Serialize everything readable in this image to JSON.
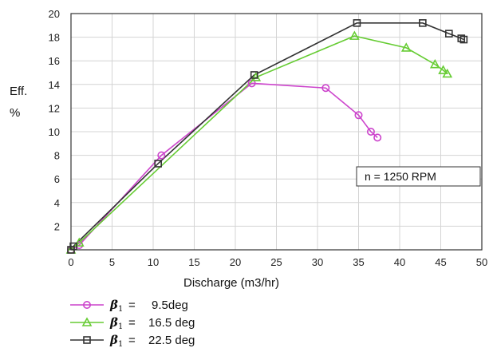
{
  "chart_data": {
    "type": "line",
    "xlabel": "Discharge (m3/hr)",
    "ylabel_line1": "Eff.",
    "ylabel_line2": "%",
    "xlim": [
      0,
      50
    ],
    "ylim": [
      0,
      20
    ],
    "xticks": [
      0,
      5,
      10,
      15,
      20,
      25,
      30,
      35,
      40,
      45,
      50
    ],
    "yticks": [
      2,
      4,
      6,
      8,
      10,
      12,
      14,
      16,
      18,
      20
    ],
    "grid": true,
    "annotation": "n = 1250 RPM",
    "legend_position": "bottom-left",
    "series": [
      {
        "name": "9.5deg",
        "beta_symbol": "β",
        "beta_subscript": "1",
        "equals": "=",
        "color": "#cc44cc",
        "marker": "circle",
        "x": [
          0,
          1,
          11,
          22,
          31,
          35,
          36.5,
          37.3
        ],
        "y": [
          0,
          0.4,
          8.0,
          14.1,
          13.7,
          11.4,
          10.0,
          9.5
        ]
      },
      {
        "name": "16.5 deg",
        "beta_symbol": "β",
        "beta_subscript": "1",
        "equals": "=",
        "color": "#66cc33",
        "marker": "triangle",
        "x": [
          0,
          1,
          22.5,
          34.5,
          40.8,
          44.3,
          45.3,
          45.8
        ],
        "y": [
          0,
          0.6,
          14.6,
          18.1,
          17.1,
          15.7,
          15.2,
          14.9
        ]
      },
      {
        "name": "22.5 deg",
        "beta_symbol": "β",
        "beta_subscript": "1",
        "equals": "=",
        "color": "#333333",
        "marker": "square",
        "x": [
          0,
          0.3,
          10.6,
          22.3,
          34.8,
          42.8,
          46,
          47.5,
          47.8
        ],
        "y": [
          0,
          0.3,
          7.3,
          14.8,
          19.2,
          19.2,
          18.3,
          17.9,
          17.8
        ]
      }
    ]
  }
}
